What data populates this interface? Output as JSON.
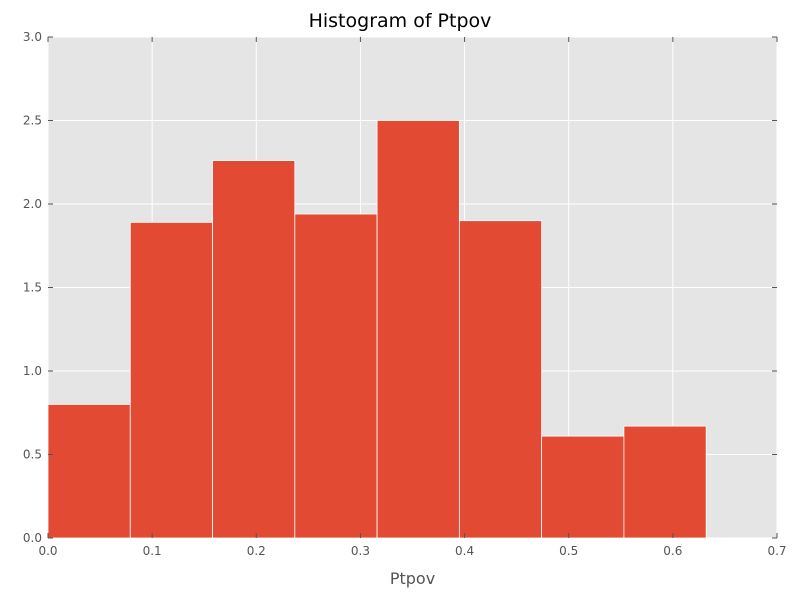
{
  "chart_data": {
    "type": "bar",
    "title": "Histogram of Ptpov",
    "xlabel": "Ptpov",
    "ylabel": "",
    "xlim": [
      0.0,
      0.7
    ],
    "ylim": [
      0.0,
      3.0
    ],
    "grid": true,
    "legend": "none",
    "bins": [
      {
        "x0": 0.0,
        "x1": 0.079,
        "value": 0.8
      },
      {
        "x0": 0.079,
        "x1": 0.158,
        "value": 1.89
      },
      {
        "x0": 0.158,
        "x1": 0.237,
        "value": 2.26
      },
      {
        "x0": 0.237,
        "x1": 0.316,
        "value": 1.94
      },
      {
        "x0": 0.316,
        "x1": 0.395,
        "value": 2.5
      },
      {
        "x0": 0.395,
        "x1": 0.474,
        "value": 1.9
      },
      {
        "x0": 0.474,
        "x1": 0.553,
        "value": 0.61
      },
      {
        "x0": 0.553,
        "x1": 0.632,
        "value": 0.67
      }
    ],
    "xticks": [
      0.0,
      0.1,
      0.2,
      0.3,
      0.4,
      0.5,
      0.6,
      0.7
    ],
    "xtick_labels": [
      "0.0",
      "0.1",
      "0.2",
      "0.3",
      "0.4",
      "0.5",
      "0.6",
      "0.7"
    ],
    "yticks": [
      0.0,
      0.5,
      1.0,
      1.5,
      2.0,
      2.5,
      3.0
    ],
    "ytick_labels": [
      "0.0",
      "0.5",
      "1.0",
      "1.5",
      "2.0",
      "2.5",
      "3.0"
    ],
    "colors": {
      "bar": "#E24A33",
      "plot_background": "#E5E5E5",
      "grid": "#FFFFFF",
      "tick_text": "#555555"
    }
  }
}
